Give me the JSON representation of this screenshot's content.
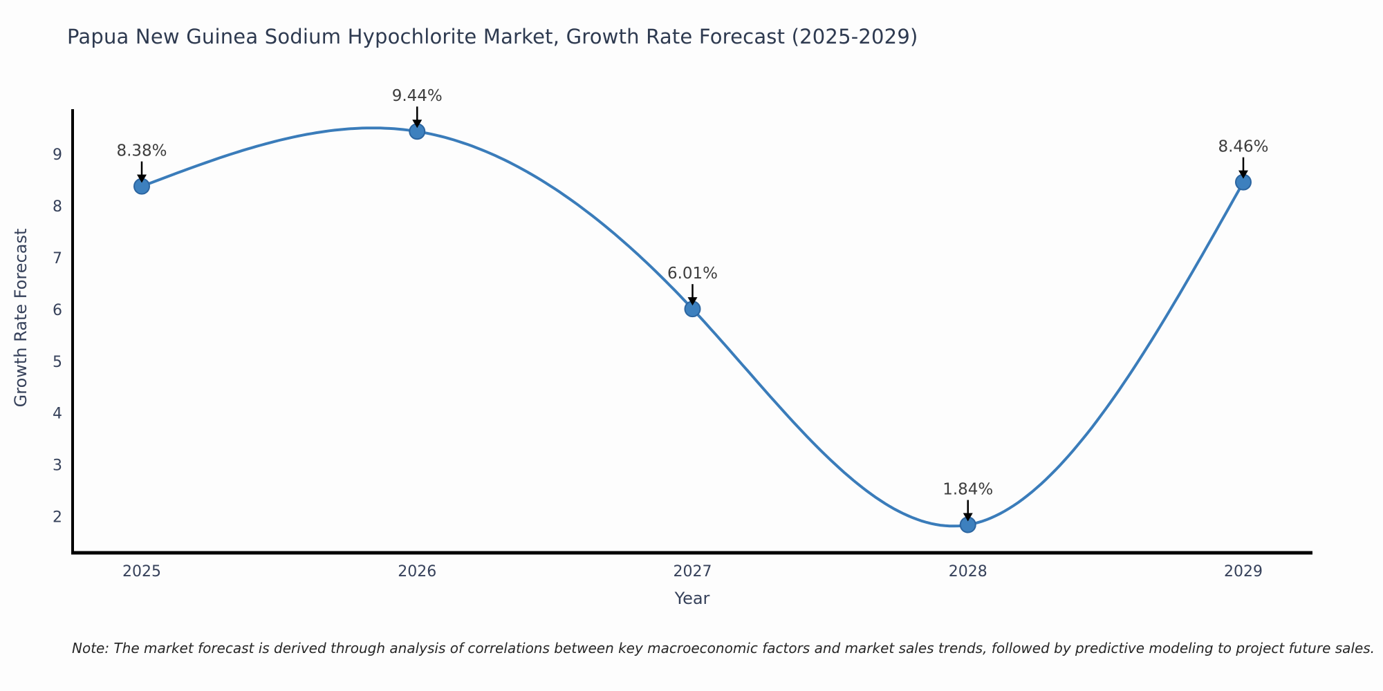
{
  "title": "Papua New Guinea Sodium Hypochlorite Market, Growth Rate Forecast (2025-2029)",
  "chart_data": {
    "type": "line",
    "x": [
      "2025",
      "2026",
      "2027",
      "2028",
      "2029"
    ],
    "series": [
      {
        "name": "Growth Rate Forecast",
        "values": [
          8.38,
          9.44,
          6.01,
          1.84,
          8.46
        ]
      }
    ],
    "point_labels": [
      "8.38%",
      "9.44%",
      "6.01%",
      "1.84%",
      "8.46%"
    ],
    "title": "Papua New Guinea Sodium Hypochlorite Market, Growth Rate Forecast (2025-2029)",
    "xlabel": "Year",
    "ylabel": "Growth Rate Forecast",
    "yticks": [
      2,
      3,
      4,
      5,
      6,
      7,
      8,
      9
    ],
    "ylim": [
      1.3,
      9.87
    ],
    "grid": false,
    "legend": "none",
    "curve": "smooth-spline",
    "colors": {
      "line": "#3a7cba",
      "marker": "#3d80be",
      "marker_edge": "#2c65a0",
      "annotation_arrow": "#000000",
      "annotation_text": "#3d3d3d",
      "axis": "#000000",
      "tick_label": "#36415a",
      "title": "#2e3a50",
      "background": "#fdfdfd"
    }
  },
  "note": "Note: The market forecast is derived through analysis of correlations between key macroeconomic factors and market sales trends, followed by predictive modeling to project future sales."
}
